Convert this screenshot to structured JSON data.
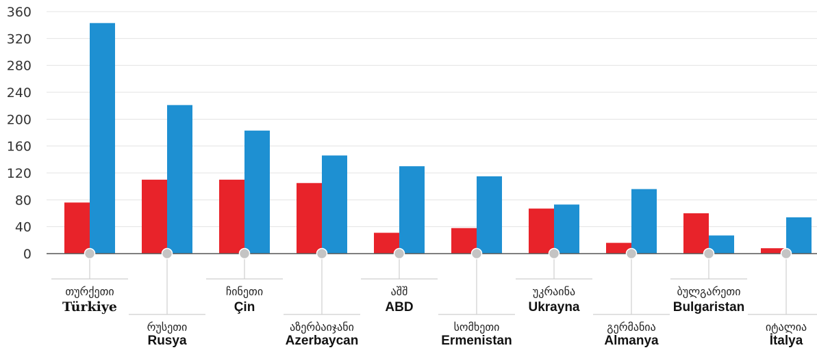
{
  "chart_data": {
    "type": "bar",
    "title": "",
    "xlabel": "",
    "ylabel": "",
    "ylim": [
      0,
      360
    ],
    "yticks": [
      0,
      40,
      80,
      120,
      160,
      200,
      240,
      280,
      320,
      360
    ],
    "grid": true,
    "legend": "none",
    "categories": [
      {
        "geo": "თურქეთი",
        "tr": "Türkiye"
      },
      {
        "geo": "რუსეთი",
        "tr": "Rusya"
      },
      {
        "geo": "ჩინეთი",
        "tr": "Çin"
      },
      {
        "geo": "აზერბაიჯანი",
        "tr": "Azerbaycan"
      },
      {
        "geo": "აშშ",
        "tr": "ABD"
      },
      {
        "geo": "სომხეთი",
        "tr": "Ermenistan"
      },
      {
        "geo": "უკრაინა",
        "tr": "Ukrayna"
      },
      {
        "geo": "გერმანია",
        "tr": "Almanya"
      },
      {
        "geo": "ბულგარეთი",
        "tr": "Bulgaristan"
      },
      {
        "geo": "იტალია",
        "tr": "İtalya"
      }
    ],
    "series": [
      {
        "color": "#e8232a",
        "values": [
          76,
          110,
          110,
          105,
          31,
          38,
          67,
          16,
          60,
          8
        ]
      },
      {
        "color": "#1e90d2",
        "values": [
          343,
          221,
          183,
          146,
          130,
          115,
          73,
          96,
          27,
          54
        ]
      }
    ]
  }
}
